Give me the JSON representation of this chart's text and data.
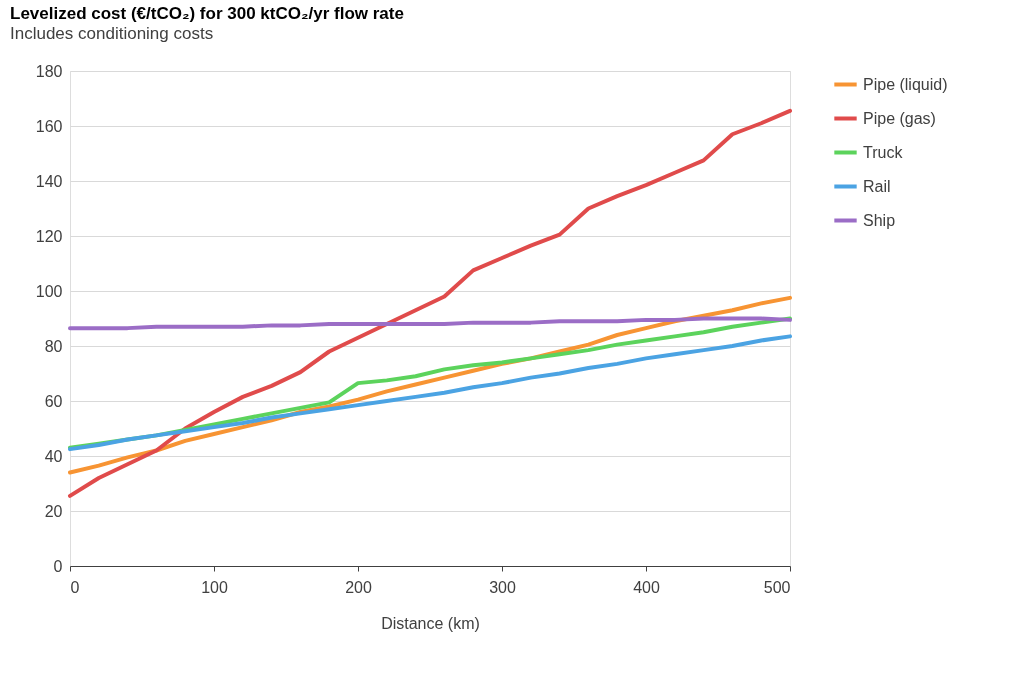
{
  "chart_data": {
    "type": "line",
    "title": "Levelized cost (€/tCO₂) for 300 ktCO₂/yr flow rate",
    "subtitle": "Includes conditioning costs",
    "xlabel": "Distance (km)",
    "x": [
      0,
      20,
      40,
      60,
      80,
      100,
      120,
      140,
      160,
      180,
      200,
      220,
      240,
      260,
      280,
      300,
      320,
      340,
      360,
      380,
      400,
      420,
      440,
      460,
      480,
      500
    ],
    "series": [
      {
        "name": "Pipe (liquid)",
        "color": "#f79433",
        "values": [
          34,
          36.5,
          39.5,
          42,
          45.5,
          48,
          50.5,
          53,
          56,
          58,
          60.5,
          63.5,
          66,
          68.5,
          71,
          73.5,
          75.5,
          78,
          80.5,
          84,
          86.5,
          89,
          91,
          93,
          95.5,
          97.5
        ]
      },
      {
        "name": "Pipe (gas)",
        "color": "#e04b4b",
        "values": [
          25.5,
          32,
          37,
          42,
          50,
          56,
          61.5,
          65.5,
          70.5,
          78,
          83,
          88,
          93,
          98,
          107.5,
          112,
          116.5,
          120.5,
          130,
          134.5,
          138.5,
          143,
          147.5,
          157,
          161,
          165.5
        ]
      },
      {
        "name": "Truck",
        "color": "#5cd35c",
        "values": [
          43,
          44.5,
          46,
          47.5,
          49.5,
          51.5,
          53.5,
          55.5,
          57.5,
          59.5,
          66.5,
          67.5,
          69,
          71.5,
          73,
          74,
          75.5,
          77,
          78.5,
          80.5,
          82,
          83.5,
          85,
          87,
          88.5,
          90
        ]
      },
      {
        "name": "Rail",
        "color": "#4ba3e3",
        "values": [
          42.5,
          44,
          46,
          47.5,
          49,
          50.5,
          52,
          54,
          55.5,
          57,
          58.5,
          60,
          61.5,
          63,
          65,
          66.5,
          68.5,
          70,
          72,
          73.5,
          75.5,
          77,
          78.5,
          80,
          82,
          83.5
        ]
      },
      {
        "name": "Ship",
        "color": "#9b6dc6",
        "values": [
          86.5,
          86.5,
          86.5,
          87,
          87,
          87,
          87,
          87.5,
          87.5,
          88,
          88,
          88,
          88,
          88,
          88.5,
          88.5,
          88.5,
          89,
          89,
          89,
          89.5,
          89.5,
          90,
          90,
          90,
          89.5
        ]
      }
    ],
    "xlim": [
      0,
      500
    ],
    "xticks": [
      0,
      100,
      200,
      300,
      400,
      500
    ],
    "ylim": [
      0,
      180
    ],
    "yticks": [
      0,
      20,
      40,
      60,
      80,
      100,
      120,
      140,
      160,
      180
    ],
    "grid": "y",
    "legend": "top right",
    "marker": "none",
    "line_style": "solid"
  }
}
